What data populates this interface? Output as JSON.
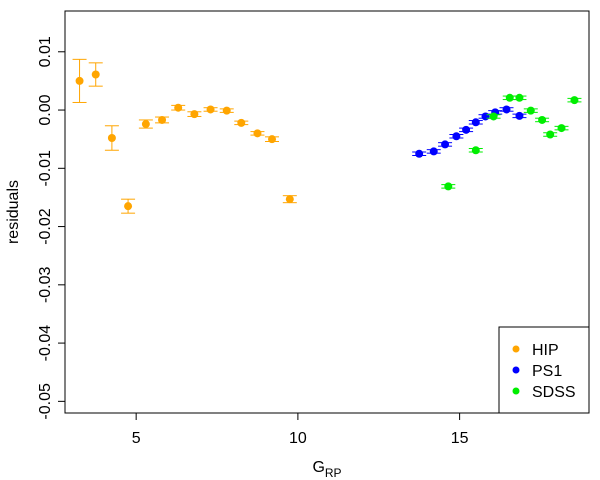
{
  "chart_data": {
    "type": "scatter",
    "title": "",
    "xlabel": "G",
    "xlabel_sub": "RP",
    "ylabel": "residuals",
    "xlim": [
      2.8,
      19.0
    ],
    "ylim": [
      -0.052,
      0.017
    ],
    "x_ticks": [
      {
        "value": 5,
        "label": "5"
      },
      {
        "value": 10,
        "label": "10"
      },
      {
        "value": 15,
        "label": "15"
      }
    ],
    "y_ticks": [
      {
        "value": 0.01,
        "label": "0.01"
      },
      {
        "value": 0.0,
        "label": "0.00"
      },
      {
        "value": -0.01,
        "label": "-0.01"
      },
      {
        "value": -0.02,
        "label": "-0.02"
      },
      {
        "value": -0.03,
        "label": "-0.03"
      },
      {
        "value": -0.04,
        "label": "-0.04"
      },
      {
        "value": -0.05,
        "label": "-0.05"
      }
    ],
    "grid": false,
    "legend_position": "bottom-right",
    "series": [
      {
        "name": "HIP",
        "color": "#FFA500",
        "points": [
          {
            "x": 3.25,
            "y": 0.005,
            "yerr": 0.0037
          },
          {
            "x": 3.75,
            "y": 0.0061,
            "yerr": 0.002
          },
          {
            "x": 4.25,
            "y": -0.0048,
            "yerr": 0.0021
          },
          {
            "x": 4.75,
            "y": -0.0165,
            "yerr": 0.0012
          },
          {
            "x": 5.3,
            "y": -0.0024,
            "yerr": 0.0007
          },
          {
            "x": 5.8,
            "y": -0.0017,
            "yerr": 0.0005
          },
          {
            "x": 6.3,
            "y": 0.0004,
            "yerr": 0.0004
          },
          {
            "x": 6.8,
            "y": -0.0007,
            "yerr": 0.0004
          },
          {
            "x": 7.3,
            "y": 0.0001,
            "yerr": 0.0003
          },
          {
            "x": 7.8,
            "y": -0.0001,
            "yerr": 0.0003
          },
          {
            "x": 8.25,
            "y": -0.0022,
            "yerr": 0.0003
          },
          {
            "x": 8.75,
            "y": -0.004,
            "yerr": 0.0003
          },
          {
            "x": 9.2,
            "y": -0.005,
            "yerr": 0.0004
          },
          {
            "x": 9.75,
            "y": -0.0153,
            "yerr": 0.0006
          }
        ]
      },
      {
        "name": "PS1",
        "color": "#0000FF",
        "points": [
          {
            "x": 13.75,
            "y": -0.0075,
            "yerr": 0.0003
          },
          {
            "x": 14.2,
            "y": -0.0071,
            "yerr": 0.0003
          },
          {
            "x": 14.55,
            "y": -0.0059,
            "yerr": 0.0003
          },
          {
            "x": 14.9,
            "y": -0.0045,
            "yerr": 0.0003
          },
          {
            "x": 15.2,
            "y": -0.0034,
            "yerr": 0.0003
          },
          {
            "x": 15.5,
            "y": -0.0021,
            "yerr": 0.0003
          },
          {
            "x": 15.8,
            "y": -0.0011,
            "yerr": 0.0003
          },
          {
            "x": 16.1,
            "y": -0.0004,
            "yerr": 0.0003
          },
          {
            "x": 16.45,
            "y": 0.0001,
            "yerr": 0.0003
          },
          {
            "x": 16.85,
            "y": -0.001,
            "yerr": 0.0003
          }
        ]
      },
      {
        "name": "SDSS",
        "color": "#00EE00",
        "points": [
          {
            "x": 14.65,
            "y": -0.0131,
            "yerr": 0.0003
          },
          {
            "x": 15.5,
            "y": -0.0069,
            "yerr": 0.0003
          },
          {
            "x": 16.05,
            "y": -0.0011,
            "yerr": 0.0003
          },
          {
            "x": 16.55,
            "y": 0.0021,
            "yerr": 0.0003
          },
          {
            "x": 16.85,
            "y": 0.0021,
            "yerr": 0.0003
          },
          {
            "x": 17.2,
            "y": -0.0001,
            "yerr": 0.0003
          },
          {
            "x": 17.55,
            "y": -0.0017,
            "yerr": 0.0003
          },
          {
            "x": 17.8,
            "y": -0.0042,
            "yerr": 0.0003
          },
          {
            "x": 18.15,
            "y": -0.0031,
            "yerr": 0.0003
          },
          {
            "x": 18.55,
            "y": 0.0017,
            "yerr": 0.0003
          }
        ]
      }
    ]
  }
}
